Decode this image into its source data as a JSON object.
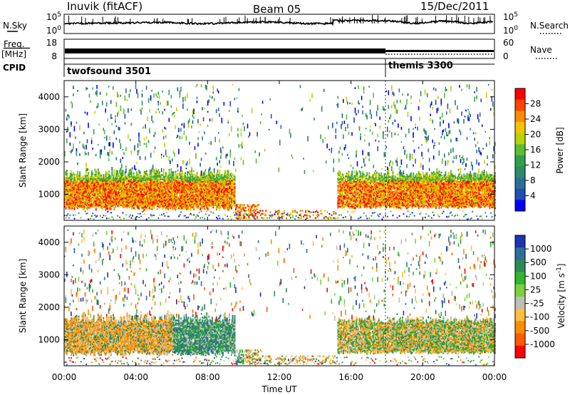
{
  "header": {
    "station": "Inuvik (fitACF)",
    "beam": "Beam 05",
    "date": "15/Dec/2011"
  },
  "panels": {
    "noise": {
      "left_label": "N.Sky",
      "right_label": "N.Search",
      "ticks": [
        "10^5",
        "10^0"
      ],
      "right_ticks": [
        "10^5",
        "10^0"
      ]
    },
    "freq": {
      "label_line1": "Freq.",
      "label_line2": "[MHz]",
      "ticks": [
        "18",
        "8"
      ],
      "right_label": "Nave",
      "right_ticks": [
        "60",
        "0"
      ]
    },
    "cpid": {
      "label": "CPID",
      "modes": [
        {
          "name": "twofsound 3501",
          "start_hour": 0
        },
        {
          "name": "themis 3300",
          "start_hour": 18
        }
      ]
    }
  },
  "chart_data": [
    {
      "type": "heatmap",
      "name": "power",
      "ylabel": "Slant Range [km]",
      "xlabel": "",
      "y_ticks": [
        1000,
        2000,
        3000,
        4000
      ],
      "ylim": [
        200,
        4500
      ],
      "xlim": [
        0,
        24
      ],
      "colorbar": {
        "label": "Power [dB]",
        "ticks": [
          "28",
          "24",
          "20",
          "16",
          "12",
          "8",
          "4"
        ],
        "colors": [
          "#ff0000",
          "#ff4500",
          "#ff8c00",
          "#f5c400",
          "#b8d400",
          "#5cbf32",
          "#32a04a",
          "#2e8b67",
          "#2d6e96",
          "#1e50b4",
          "#0000ff"
        ]
      }
    },
    {
      "type": "heatmap",
      "name": "velocity",
      "ylabel": "Slant Range [km]",
      "xlabel": "Time UT",
      "y_ticks": [
        1000,
        2000,
        3000,
        4000
      ],
      "x_ticks": [
        "00:00",
        "04:00",
        "08:00",
        "12:00",
        "16:00",
        "20:00",
        "00:00"
      ],
      "ylim": [
        200,
        4500
      ],
      "xlim": [
        0,
        24
      ],
      "colorbar": {
        "label": "Velocity [m s^-1]",
        "ticks": [
          "1000",
          "500",
          "100",
          "25",
          "-25",
          "-100",
          "-500",
          "-1000"
        ],
        "colors": [
          "#1e32b4",
          "#2d6e96",
          "#2e8b57",
          "#32b432",
          "#7ad23c",
          "#bebeb4",
          "#ffbe3c",
          "#ff8c00",
          "#ff5a00",
          "#ff0000"
        ]
      }
    }
  ]
}
